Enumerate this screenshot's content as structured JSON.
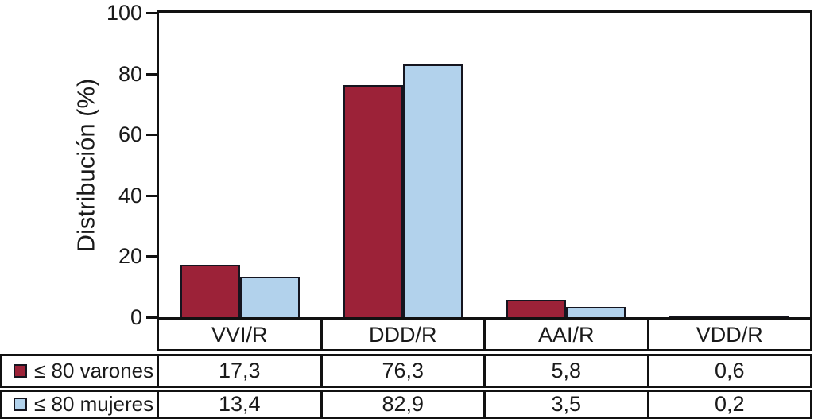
{
  "chart_data": {
    "type": "bar",
    "title": "",
    "ylabel": "Distribución (%)",
    "xlabel": "",
    "ylim": [
      0,
      100
    ],
    "yticks": [
      0,
      20,
      40,
      60,
      80,
      100
    ],
    "grid": false,
    "legend_position": "table-rows-left",
    "value_table_shown": true,
    "decimal_separator": ",",
    "categories": [
      "VVI/R",
      "DDD/R",
      "AAI/R",
      "VDD/R"
    ],
    "series": [
      {
        "name": "≤ 80 varones",
        "color": "#9C2238",
        "values": [
          17.3,
          76.3,
          5.8,
          0.6
        ],
        "labels": [
          "17,3",
          "76,3",
          "5,8",
          "0,6"
        ]
      },
      {
        "name": "≤ 80 mujeres",
        "color": "#B2D2EC",
        "values": [
          13.4,
          82.9,
          3.5,
          0.2
        ],
        "labels": [
          "13,4",
          "82,9",
          "3,5",
          "0,2"
        ]
      }
    ]
  },
  "colors": {
    "bar_outline": "#15151f",
    "axis": "#111111",
    "text": "#1a1a1a",
    "background": "#ffffff"
  }
}
